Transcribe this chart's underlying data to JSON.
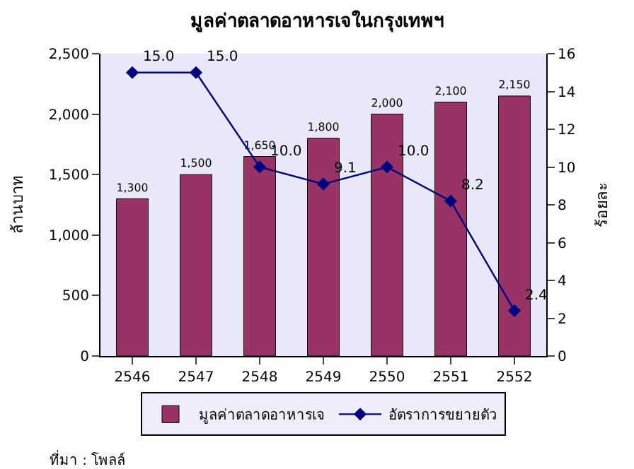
{
  "chart_data": {
    "type": "bar",
    "title": "มูลค่าตลาดอาหารเจในกรุงเทพฯ",
    "ylabel": "ล้านบาท",
    "y2label": "ร้อยละ",
    "categories": [
      "2546",
      "2547",
      "2548",
      "2549",
      "2550",
      "2551",
      "2552"
    ],
    "series": [
      {
        "name": "มูลค่าตลาดอาหารเจ",
        "color": "#993366",
        "values": [
          1300,
          1500,
          1650,
          1800,
          2000,
          2100,
          2150
        ],
        "value_labels": [
          "1,300",
          "1,500",
          "1,650",
          "1,800",
          "2,000",
          "2,100",
          "2,150"
        ]
      },
      {
        "name": "อัตราการขยายตัว",
        "type": "line",
        "axis": "y2",
        "color": "#000080",
        "marker": "diamond",
        "values": [
          15.0,
          15.0,
          10.0,
          9.1,
          10.0,
          8.2,
          2.4
        ],
        "value_labels": [
          "15.0",
          "15.0",
          "10.0",
          "9.1",
          "10.0",
          "8.2",
          "2.4"
        ]
      }
    ],
    "ylim": [
      0,
      2500
    ],
    "yticks": [
      {
        "value": 0,
        "label": "0"
      },
      {
        "value": 500,
        "label": "500"
      },
      {
        "value": 1000,
        "label": "1,000"
      },
      {
        "value": 1500,
        "label": "1,500"
      },
      {
        "value": 2000,
        "label": "2,000"
      },
      {
        "value": 2500,
        "label": "2,500"
      }
    ],
    "y2lim": [
      0,
      16
    ],
    "y2ticks": [
      0,
      2,
      4,
      6,
      8,
      10,
      12,
      14,
      16
    ],
    "legend": "bottom",
    "grid": false,
    "annotations": [
      "ที่มา : โพลล์"
    ]
  }
}
